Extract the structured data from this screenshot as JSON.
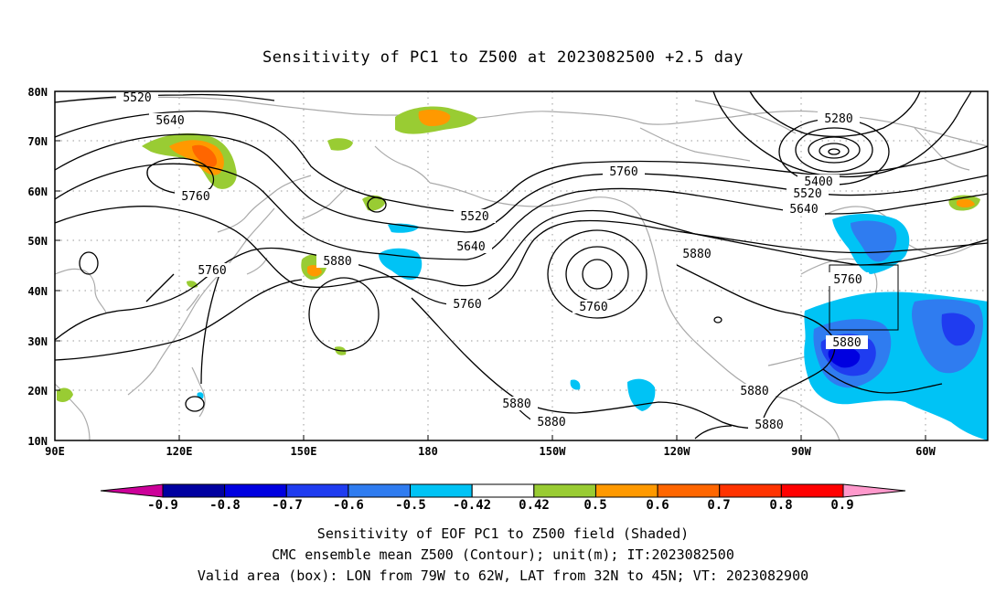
{
  "title": "Sensitivity of PC1 to Z500 at 2023082500 +2.5 day",
  "lat_labels": [
    "80N",
    "70N",
    "60N",
    "50N",
    "40N",
    "30N",
    "20N",
    "10N"
  ],
  "lon_labels": [
    "90E",
    "120E",
    "150E",
    "180",
    "150W",
    "120W",
    "90W",
    "60W"
  ],
  "contour_labels": [
    {
      "text": "5520"
    },
    {
      "text": "5640"
    },
    {
      "text": "5760"
    },
    {
      "text": "5760"
    },
    {
      "text": "5880"
    },
    {
      "text": "5520"
    },
    {
      "text": "5640"
    },
    {
      "text": "5760"
    },
    {
      "text": "5760"
    },
    {
      "text": "5760"
    },
    {
      "text": "5880"
    },
    {
      "text": "5280"
    },
    {
      "text": "5400"
    },
    {
      "text": "5520"
    },
    {
      "text": "5640"
    },
    {
      "text": "5760"
    },
    {
      "text": "5880"
    },
    {
      "text": "5880"
    },
    {
      "text": "5880"
    },
    {
      "text": "5880"
    },
    {
      "text": "5880"
    }
  ],
  "colorbar": {
    "labels": [
      "-0.9",
      "-0.8",
      "-0.7",
      "-0.6",
      "-0.5",
      "-0.42",
      "0.42",
      "0.5",
      "0.6",
      "0.7",
      "0.8",
      "0.9"
    ],
    "colors": [
      "#cc0099",
      "#0000a0",
      "#0000e0",
      "#1f3cf0",
      "#2f7cf0",
      "#00c3f5",
      "#ffffff",
      "#99cc33",
      "#ff9900",
      "#ff6600",
      "#ff3300",
      "#ff0000",
      "#ff99cc"
    ]
  },
  "caption": [
    "Sensitivity of EOF PC1 to Z500 field (Shaded)",
    "CMC ensemble mean Z500 (Contour); unit(m); IT:2023082500",
    "Valid area (box): LON from 79W to 62W, LAT from 32N to 45N; VT: 2023082900"
  ],
  "valid_box": {
    "lon_min": -79,
    "lon_max": -62,
    "lat_min": 32,
    "lat_max": 45
  }
}
